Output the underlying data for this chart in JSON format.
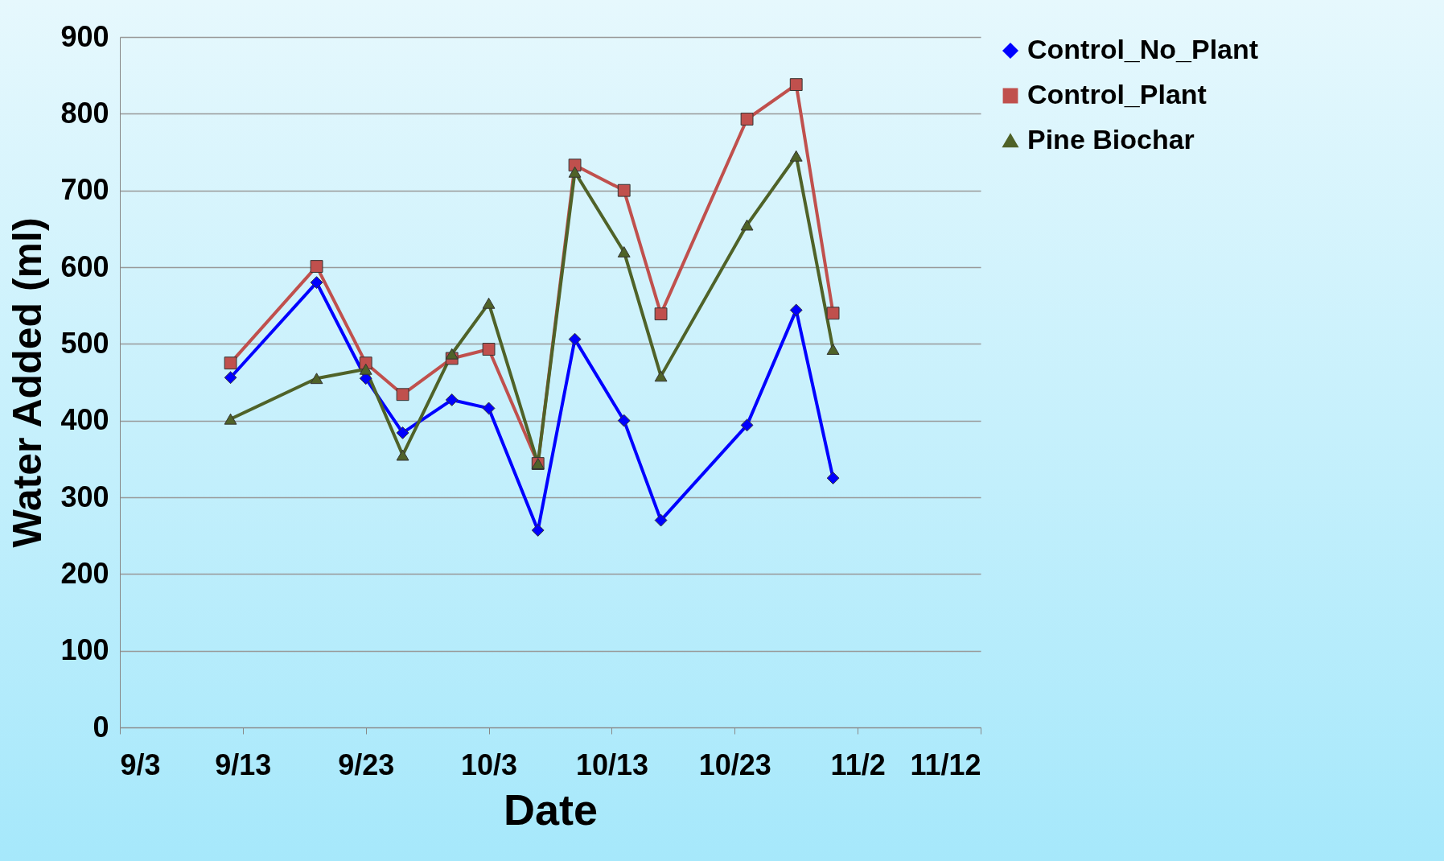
{
  "chart_data": {
    "type": "line",
    "xlabel": "Date",
    "ylabel": "Water Added (ml)",
    "x": [
      "--09-12",
      "--09-19",
      "--09-23",
      "--09-26",
      "--09-30",
      "--10-03",
      "--10-07",
      "--10-10",
      "--10-14",
      "--10-17",
      "--10-24",
      "--10-28",
      "--10-31"
    ],
    "series": [
      {
        "name": "Control_No_Plant",
        "color": "#0000ff",
        "marker": "diamond",
        "values": [
          456,
          580,
          455,
          384,
          427,
          416,
          257,
          506,
          400,
          270,
          394,
          544,
          325
        ]
      },
      {
        "name": "Control_Plant",
        "color": "#c0504d",
        "marker": "square",
        "values": [
          475,
          601,
          475,
          434,
          481,
          493,
          344,
          733,
          700,
          539,
          793,
          838,
          540
        ]
      },
      {
        "name": "Pine Biochar",
        "color": "#4f6228",
        "marker": "triangle",
        "values": [
          402,
          455,
          467,
          355,
          487,
          553,
          344,
          724,
          620,
          458,
          655,
          745,
          493
        ]
      }
    ],
    "xlim": [
      "--09-03",
      "--11-12"
    ],
    "xticks": [
      {
        "value": "--09-03",
        "label": "9/3"
      },
      {
        "value": "--09-13",
        "label": "9/13"
      },
      {
        "value": "--09-23",
        "label": "9/23"
      },
      {
        "value": "--10-03",
        "label": "10/3"
      },
      {
        "value": "--10-13",
        "label": "10/13"
      },
      {
        "value": "--10-23",
        "label": "10/23"
      },
      {
        "value": "--11-02",
        "label": "11/2"
      },
      {
        "value": "--11-12",
        "label": "11/12"
      }
    ],
    "ylim": [
      0,
      900
    ],
    "yticks": [
      0,
      100,
      200,
      300,
      400,
      500,
      600,
      700,
      800,
      900
    ],
    "grid": "y",
    "legend": "top right",
    "line_style": "solid"
  }
}
